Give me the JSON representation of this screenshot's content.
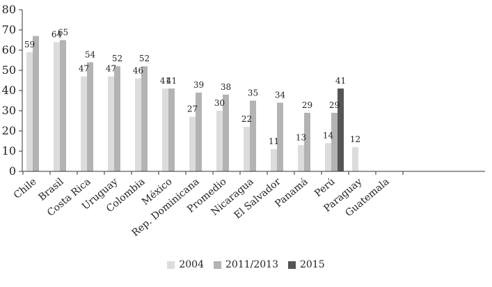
{
  "chart_data": {
    "type": "bar",
    "title": "",
    "xlabel": "",
    "ylabel": "",
    "ylim": [
      0,
      80
    ],
    "yticks": [
      0,
      10,
      20,
      30,
      40,
      50,
      60,
      70,
      80
    ],
    "grid": false,
    "legend_position": "bottom",
    "categories": [
      "Chile",
      "Brasil",
      "Costa Rica",
      "Uruguay",
      "Colombia",
      "México",
      "Rep. Dominicana",
      "Promedio",
      "Nicaragua",
      "El Salvador",
      "Panamá",
      "Perú",
      "Paraguay",
      "Guatemala"
    ],
    "series": [
      {
        "name": "2004",
        "color": "#dcdcdc",
        "values": [
          59,
          64,
          47,
          47,
          46,
          41,
          27,
          30,
          22,
          11,
          13,
          14,
          12,
          null
        ]
      },
      {
        "name": "2011/2013",
        "color": "#b3b3b3",
        "values": [
          67,
          65,
          54,
          52,
          52,
          41,
          39,
          38,
          35,
          34,
          29,
          29,
          null,
          null
        ]
      },
      {
        "name": "2015",
        "color": "#555555",
        "values": [
          null,
          null,
          null,
          null,
          null,
          null,
          null,
          null,
          null,
          null,
          null,
          41,
          null,
          null
        ]
      }
    ],
    "data_labels": [
      [
        "59",
        "64",
        "47",
        "47",
        "46",
        "41",
        "27",
        "30",
        "22",
        "11",
        "13",
        "14",
        "12",
        ""
      ],
      [
        "",
        "65",
        "54",
        "52",
        "52",
        "41",
        "39",
        "38",
        "35",
        "34",
        "29",
        "29",
        "",
        ""
      ],
      [
        "",
        "",
        "",
        "",
        "",
        "",
        "",
        "",
        "",
        "",
        "",
        "41",
        "",
        ""
      ]
    ]
  }
}
